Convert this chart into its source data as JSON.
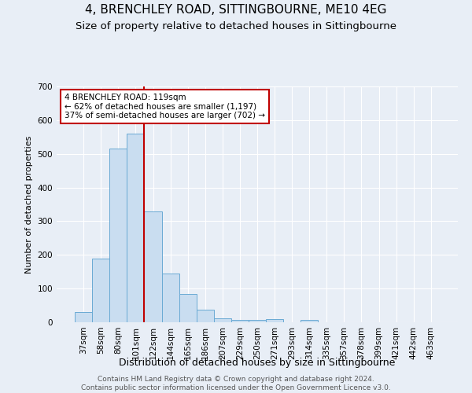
{
  "title": "4, BRENCHLEY ROAD, SITTINGBOURNE, ME10 4EG",
  "subtitle": "Size of property relative to detached houses in Sittingbourne",
  "xlabel": "Distribution of detached houses by size in Sittingbourne",
  "ylabel": "Number of detached properties",
  "footer1": "Contains HM Land Registry data © Crown copyright and database right 2024.",
  "footer2": "Contains public sector information licensed under the Open Government Licence v3.0.",
  "categories": [
    "37sqm",
    "58sqm",
    "80sqm",
    "101sqm",
    "122sqm",
    "144sqm",
    "165sqm",
    "186sqm",
    "207sqm",
    "229sqm",
    "250sqm",
    "271sqm",
    "293sqm",
    "314sqm",
    "335sqm",
    "357sqm",
    "378sqm",
    "399sqm",
    "421sqm",
    "442sqm",
    "463sqm"
  ],
  "values": [
    30,
    190,
    515,
    560,
    328,
    145,
    85,
    38,
    12,
    8,
    8,
    10,
    0,
    8,
    0,
    0,
    0,
    0,
    0,
    0,
    0
  ],
  "bar_color": "#c9ddf0",
  "bar_edge_color": "#6aaad4",
  "vline_color": "#c00000",
  "annotation_text": "4 BRENCHLEY ROAD: 119sqm\n← 62% of detached houses are smaller (1,197)\n37% of semi-detached houses are larger (702) →",
  "annotation_box_color": "#ffffff",
  "annotation_box_edge": "#c00000",
  "ylim": [
    0,
    700
  ],
  "yticks": [
    0,
    100,
    200,
    300,
    400,
    500,
    600,
    700
  ],
  "bg_color": "#e8eef6",
  "plot_bg_color": "#e8eef6",
  "grid_color": "#ffffff",
  "title_fontsize": 11,
  "subtitle_fontsize": 9.5,
  "xlabel_fontsize": 9,
  "ylabel_fontsize": 8,
  "tick_fontsize": 7.5,
  "footer_fontsize": 6.5
}
